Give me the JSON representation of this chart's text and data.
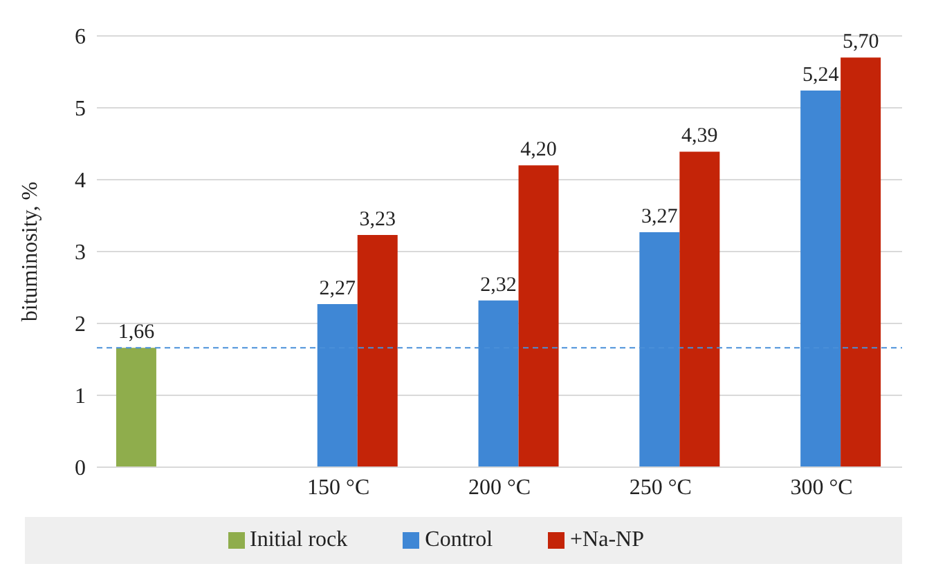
{
  "chart_data": {
    "type": "bar",
    "ylabel": "bituminosity, %",
    "categories": [
      null,
      "150 °C",
      "200 °C",
      "250 °C",
      "300 °C"
    ],
    "series": [
      {
        "name": "Initial rock",
        "color": "#8fad4c",
        "values": [
          1.66,
          null,
          null,
          null,
          null
        ],
        "value_labels": [
          "1,66",
          null,
          null,
          null,
          null
        ]
      },
      {
        "name": "Control",
        "color": "#3f87d5",
        "values": [
          null,
          2.27,
          2.32,
          3.27,
          5.24
        ],
        "value_labels": [
          null,
          "2,27",
          "2,32",
          "3,27",
          "5,24"
        ]
      },
      {
        "name": "+Na-NP",
        "color": "#c42408",
        "values": [
          null,
          3.23,
          4.2,
          4.39,
          5.7
        ],
        "value_labels": [
          null,
          "3,23",
          "4,20",
          "4,39",
          "5,70"
        ]
      }
    ],
    "ylim": [
      0,
      6
    ],
    "yticks": [
      0,
      1,
      2,
      3,
      4,
      5,
      6
    ],
    "grid": "y",
    "legend": "bottom",
    "ref_lines": [
      {
        "axis": "y",
        "value": 1.66,
        "color": "#4a90d9",
        "line_style": "dashed"
      }
    ]
  }
}
